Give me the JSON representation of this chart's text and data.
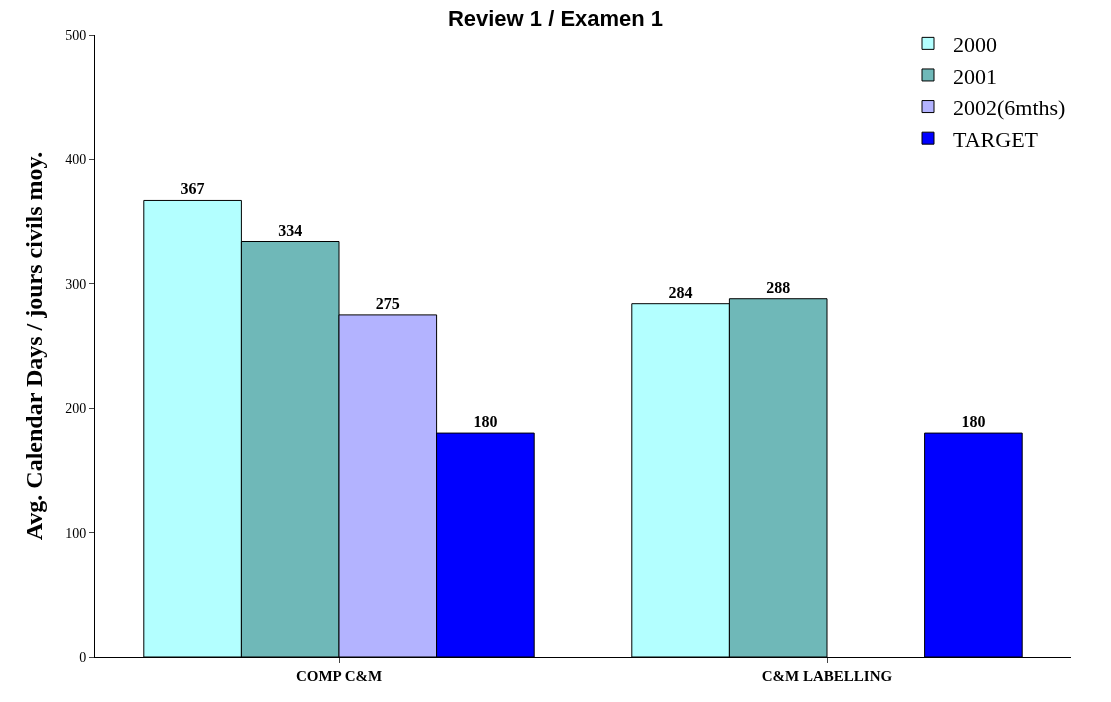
{
  "chart_data": {
    "type": "bar",
    "title": "Review 1 / Examen 1",
    "ylabel": "Avg. Calendar Days / jours civils moy.",
    "categories": [
      "COMP C&M",
      "C&M LABELLING"
    ],
    "series": [
      {
        "name": "2000",
        "color": "#b3ffff",
        "values": [
          367,
          284
        ]
      },
      {
        "name": "2001",
        "color": "#6fb8b8",
        "values": [
          334,
          288
        ]
      },
      {
        "name": "2002(6mths)",
        "color": "#b3b3ff",
        "values": [
          275,
          null
        ]
      },
      {
        "name": "TARGET",
        "color": "#0000ff",
        "values": [
          180,
          180
        ]
      }
    ],
    "ylim": [
      0,
      500
    ],
    "yticks": [
      0,
      100,
      200,
      300,
      400,
      500
    ],
    "legend": "top right",
    "data_labels": true
  }
}
